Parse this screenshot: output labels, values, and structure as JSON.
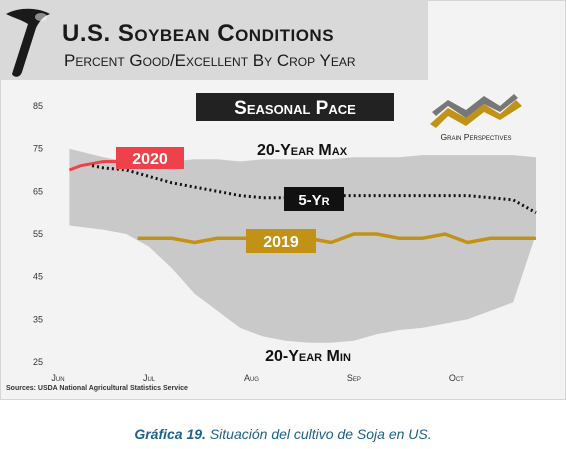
{
  "title": "U.S. Soybean Conditions",
  "subtitle": "Percent Good/Excellent By Crop Year",
  "badge": "Seasonal Pace",
  "brand": "Grain Perspectives",
  "source": "Sources: USDA National Agricultural Statistics Service",
  "caption": {
    "label": "Gráfica 19.",
    "text": " Situación del cultivo de Soja en US."
  },
  "colors": {
    "band": "#c9c9c9",
    "series_2020": "#f0404a",
    "series_2019": "#c29217",
    "series_5yr": "#111111"
  },
  "chart_data": {
    "type": "area",
    "ylim": [
      25,
      85
    ],
    "y_ticks": [
      25,
      35,
      45,
      55,
      65,
      75,
      85
    ],
    "x_tick_labels": [
      "Jun",
      "Jul",
      "Aug",
      "Sep",
      "Oct"
    ],
    "x_ticks_week": [
      0,
      4,
      8.5,
      13,
      17.5
    ],
    "x_range_week": [
      0,
      21
    ],
    "band_max_label": "20-Year Max",
    "band_min_label": "20-Year Min",
    "band_max": {
      "x": [
        0.5,
        2,
        3,
        4,
        5,
        6,
        7,
        8,
        9,
        10,
        11,
        12,
        13,
        14,
        15,
        16,
        17,
        18,
        19,
        20,
        21
      ],
      "y": [
        75,
        73,
        72,
        72,
        72,
        72.5,
        72.5,
        72,
        72.5,
        72.5,
        72.5,
        72.5,
        73,
        73,
        73,
        73.5,
        73.5,
        73.5,
        73.5,
        73.5,
        73
      ]
    },
    "band_min": {
      "x": [
        0.5,
        2,
        3,
        4,
        5,
        6,
        7,
        8,
        9,
        10,
        11,
        12,
        13,
        14,
        15,
        16,
        17,
        18,
        19,
        20,
        21
      ],
      "y": [
        57,
        56,
        55,
        52,
        47,
        41,
        37,
        33,
        31,
        30,
        29.5,
        29.5,
        30,
        31.5,
        32.5,
        33,
        34,
        35,
        37,
        39,
        55
      ]
    },
    "series": [
      {
        "name": "2020",
        "x": [
          0.5,
          1,
          2,
          3
        ],
        "y": [
          70,
          71,
          72,
          72
        ]
      },
      {
        "name": "5-Yr",
        "x": [
          1.5,
          2,
          3,
          4,
          5,
          6,
          7,
          8,
          9,
          10,
          11,
          12,
          13,
          14,
          15,
          16,
          17,
          18,
          19,
          20,
          21
        ],
        "y": [
          71,
          70.5,
          70,
          68.5,
          67,
          66,
          65,
          64,
          63.5,
          63.5,
          64,
          64,
          64,
          64,
          64,
          64,
          64,
          64,
          63.5,
          63,
          60
        ]
      },
      {
        "name": "2019",
        "x": [
          3.5,
          4,
          5,
          6,
          7,
          8,
          9,
          10,
          11,
          12,
          13,
          14,
          15,
          16,
          17,
          18,
          19,
          20,
          21
        ],
        "y": [
          54,
          54,
          54,
          53,
          54,
          54,
          54,
          54,
          54,
          53,
          55,
          55,
          54,
          54,
          55,
          53,
          54,
          54,
          54
        ]
      }
    ]
  }
}
